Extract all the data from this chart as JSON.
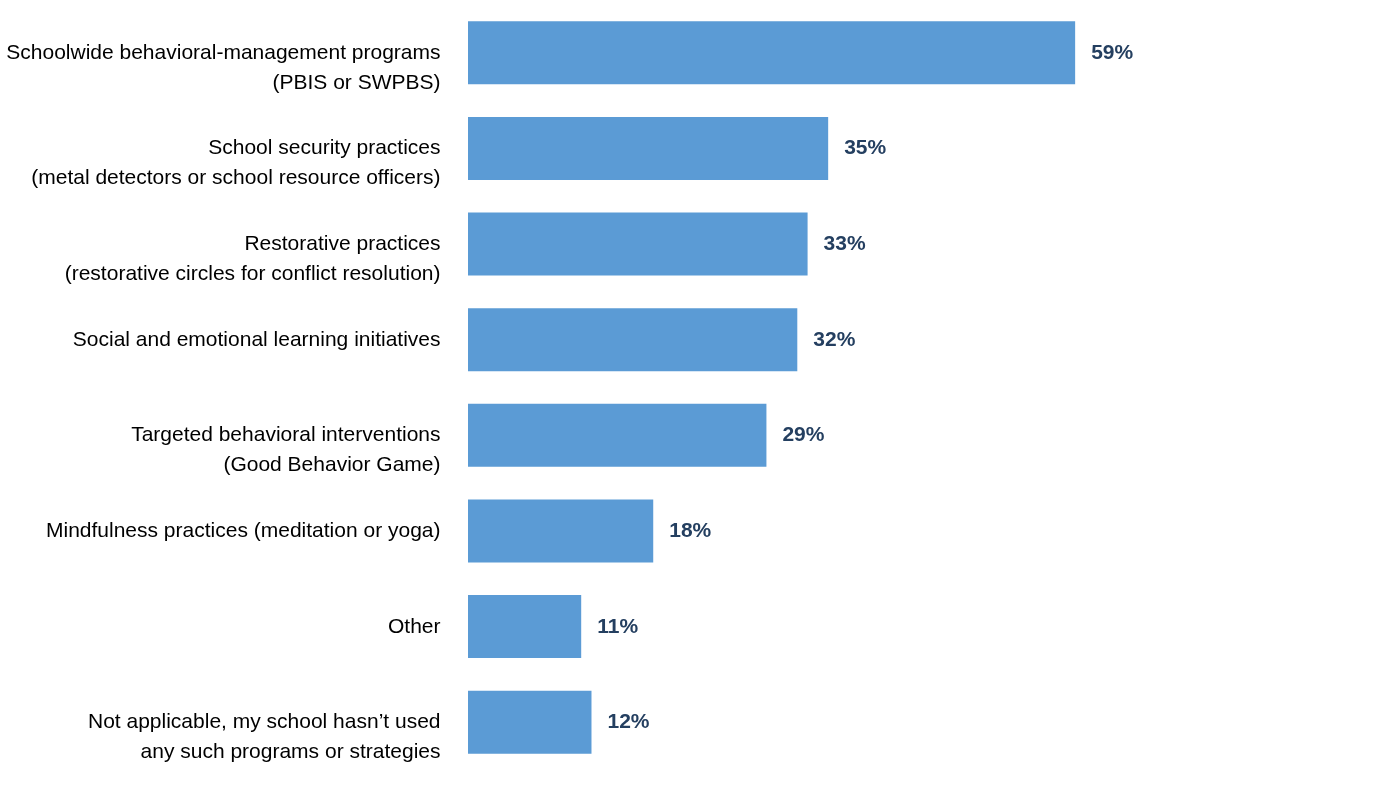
{
  "chart_data": {
    "type": "bar",
    "orientation": "horizontal",
    "categories": [
      "Schoolwide behavioral-management programs\n(PBIS or SWPBS)",
      "School security practices\n(metal detectors or school resource officers)",
      "Restorative practices\n(restorative circles for conflict resolution)",
      "Social and emotional learning initiatives",
      "Targeted behavioral interventions\n(Good Behavior Game)",
      "Mindfulness practices (meditation or yoga)",
      "Other",
      "Not applicable, my school hasn’t used\nany such programs or strategies"
    ],
    "values": [
      59,
      35,
      33,
      32,
      29,
      18,
      11,
      12
    ],
    "value_labels": [
      "59%",
      "35%",
      "33%",
      "32%",
      "29%",
      "18%",
      "11%",
      "12%"
    ],
    "color": "#5b9bd5",
    "grid": false
  }
}
